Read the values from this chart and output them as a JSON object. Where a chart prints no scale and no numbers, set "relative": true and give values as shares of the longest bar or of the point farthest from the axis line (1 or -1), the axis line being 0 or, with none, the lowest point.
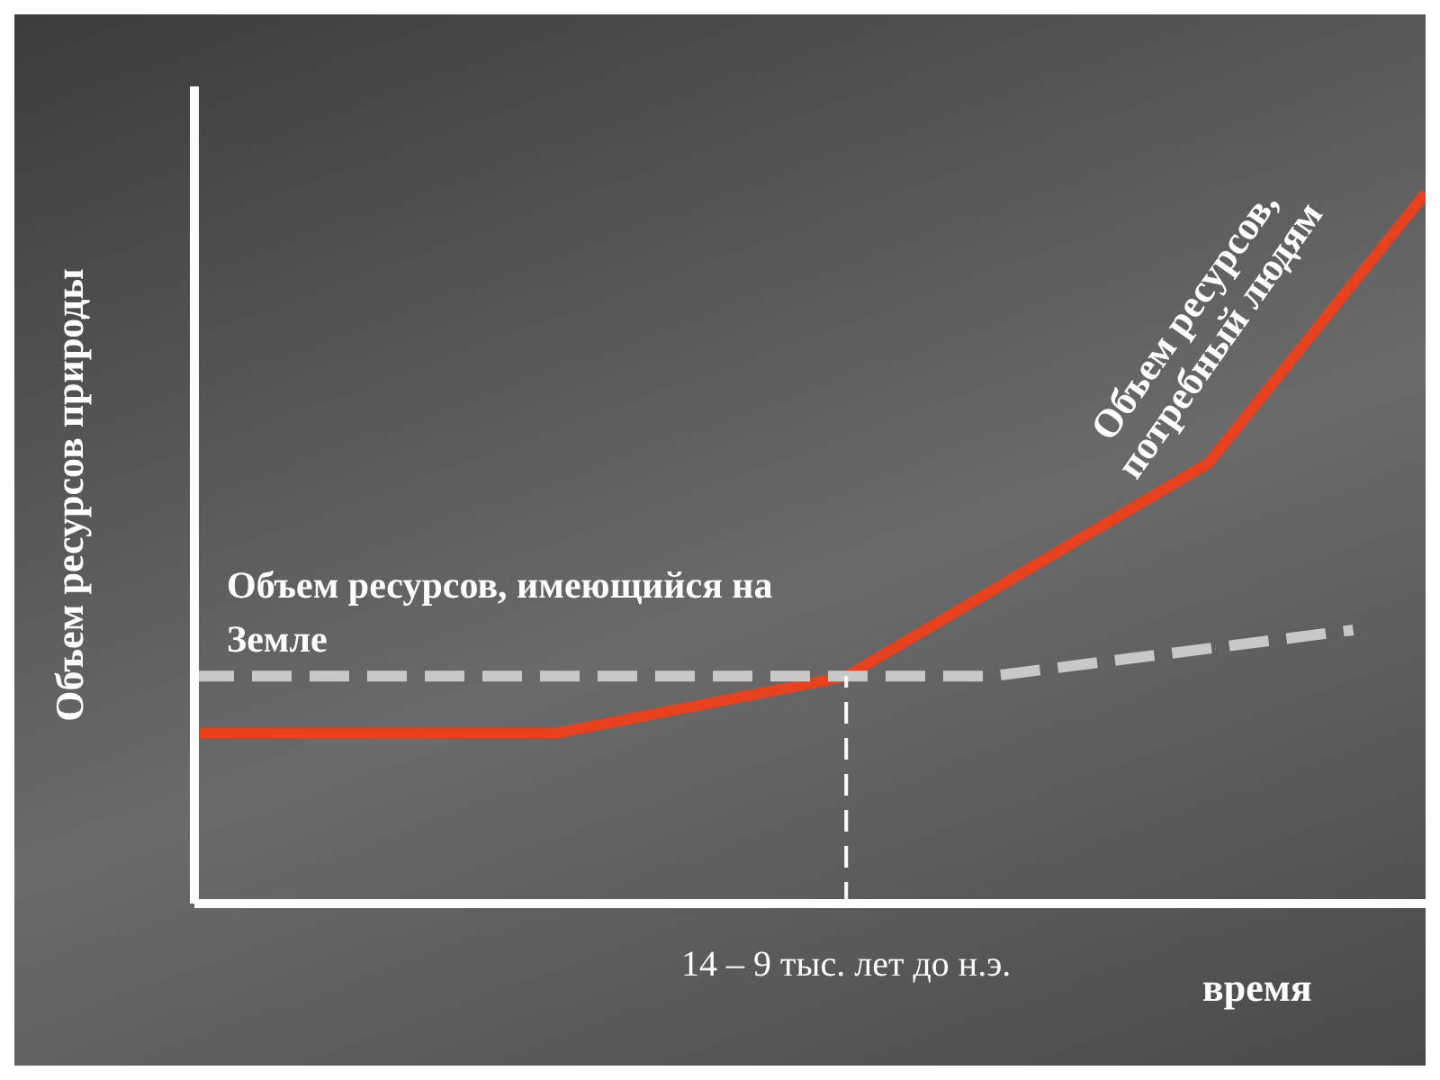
{
  "chart_data": {
    "type": "line",
    "relative": true,
    "xlabel": "время",
    "ylabel": "Объем ресурсов природы",
    "categories": [
      null,
      null,
      null,
      null,
      null,
      null,
      null,
      null,
      null,
      null,
      null,
      null,
      null,
      null,
      null,
      null,
      null,
      null
    ],
    "series": [
      {
        "name": "Объем ресурсов, потребный людям",
        "color": "#e8411e",
        "line_style": "solid",
        "values": [
          0.24,
          null,
          null,
          null,
          null,
          0.24,
          null,
          null,
          null,
          0.32,
          null,
          null,
          null,
          null,
          0.62,
          null,
          null,
          1
        ]
      },
      {
        "name": "Объем ресурсов, имеющийся на Земле",
        "color": "#c8c8c8",
        "line_style": "dashed",
        "values": [
          0.32,
          null,
          null,
          null,
          null,
          null,
          null,
          null,
          null,
          null,
          null,
          0.32,
          null,
          null,
          null,
          null,
          0.385,
          null
        ]
      }
    ],
    "annotations": [
      {
        "text": "14 – 9 тыс. лет до н.э.",
        "y": 0.32
      }
    ],
    "marker": "none",
    "grid": false,
    "legend": false
  }
}
